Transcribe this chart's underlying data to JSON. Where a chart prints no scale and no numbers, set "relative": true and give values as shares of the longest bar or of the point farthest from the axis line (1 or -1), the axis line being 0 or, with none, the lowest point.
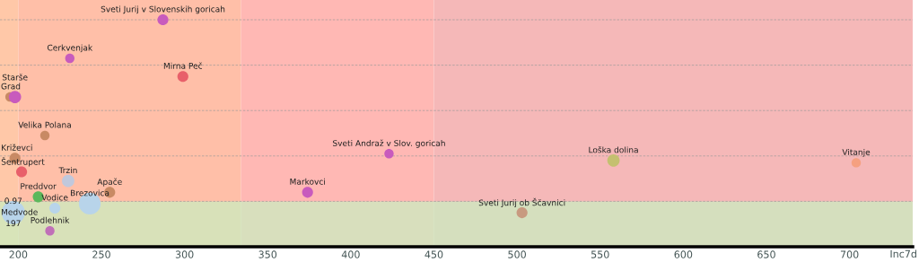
{
  "chart_data": {
    "type": "bubble",
    "relative": true,
    "xlabel": "Inc7d",
    "xlim": [
      189,
      738
    ],
    "xticks": [
      200,
      250,
      300,
      350,
      400,
      450,
      500,
      550,
      600,
      650,
      700
    ],
    "grid": "y",
    "bands": [
      {
        "axis": "x",
        "from": 189,
        "to": 200,
        "color": "#ffc8a8"
      },
      {
        "axis": "x",
        "from": 200,
        "to": 334,
        "color": "#ffbfa8"
      },
      {
        "axis": "x",
        "from": 334,
        "to": 450,
        "color": "#ffb8b4"
      },
      {
        "axis": "x",
        "from": 450,
        "to": 738,
        "color": "#f5b8b8"
      },
      {
        "axis": "y",
        "from": 0,
        "to": 0.2,
        "color": "#c8f0c0"
      }
    ],
    "series": [
      {
        "x": [
          287,
          231,
          299,
          195,
          198,
          216,
          198,
          202,
          230,
          255,
          212,
          222,
          243,
          197,
          219,
          374,
          423,
          503,
          558,
          704
        ],
        "values": [
          1.0,
          0.83,
          0.75,
          0.66,
          0.66,
          0.49,
          0.39,
          0.33,
          0.29,
          0.24,
          0.22,
          0.17,
          0.19,
          0.15,
          0.07,
          0.24,
          0.41,
          0.15,
          0.38,
          0.37
        ],
        "sizes": [
          0.22,
          0.16,
          0.22,
          0.16,
          0.28,
          0.16,
          0.22,
          0.22,
          0.28,
          0.22,
          0.22,
          0.22,
          0.87,
          1,
          0.16,
          0.22,
          0.16,
          0.22,
          0.28,
          0.16
        ],
        "colors": [
          "#c85bbd",
          "#c85bbd",
          "#e8606a",
          "#c88a64",
          "#c85bbd",
          "#c88a64",
          "#c88a64",
          "#e8606a",
          "#c0c8dc",
          "#c88a64",
          "#5cb85c",
          "#b8d4ea",
          "#b8d4ea",
          "#b8d4ea",
          "#c070b8",
          "#c85bbd",
          "#c85bbd",
          "#c89a80",
          "#c4c070",
          "#f5a080"
        ]
      }
    ],
    "annotations": [
      {
        "text": "Sveti Jurij v Slovenskih goricah",
        "x": 287,
        "y": 1.0
      },
      {
        "text": "Cerkvenjak",
        "x": 231,
        "y": 0.83
      },
      {
        "text": "Mirna Peč",
        "x": 299,
        "y": 0.75
      },
      {
        "text": "Grad",
        "x": 195,
        "y": 0.66
      },
      {
        "text": "Starše",
        "x": 198,
        "y": 0.66
      },
      {
        "text": "Velika Polana",
        "x": 216,
        "y": 0.49
      },
      {
        "text": "Križevci",
        "x": 198,
        "y": 0.39
      },
      {
        "text": "Šentrupert",
        "x": 202,
        "y": 0.33
      },
      {
        "text": "Trzin",
        "x": 230,
        "y": 0.29
      },
      {
        "text": "Apače",
        "x": 255,
        "y": 0.24
      },
      {
        "text": "Preddvor",
        "x": 212,
        "y": 0.22
      },
      {
        "text": "Vodice",
        "x": 222,
        "y": 0.17
      },
      {
        "text": "Brezovica",
        "x": 243,
        "y": 0.19
      },
      {
        "text": "0.97",
        "x": 197,
        "y": 0.15
      },
      {
        "text": "Medvode",
        "x": 197,
        "y": 0.15
      },
      {
        "text": "197",
        "x": 197,
        "y": 0.15
      },
      {
        "text": "Podlehnik",
        "x": 219,
        "y": 0.07
      },
      {
        "text": "Markovci",
        "x": 374,
        "y": 0.24
      },
      {
        "text": "Sveti Andraž v Slov. goricah",
        "x": 423,
        "y": 0.41
      },
      {
        "text": "Sveti Jurij ob Ščavnici",
        "x": 503,
        "y": 0.15
      },
      {
        "text": "Loška dolina",
        "x": 558,
        "y": 0.38
      },
      {
        "text": "Vitanje",
        "x": 704,
        "y": 0.37
      }
    ]
  }
}
